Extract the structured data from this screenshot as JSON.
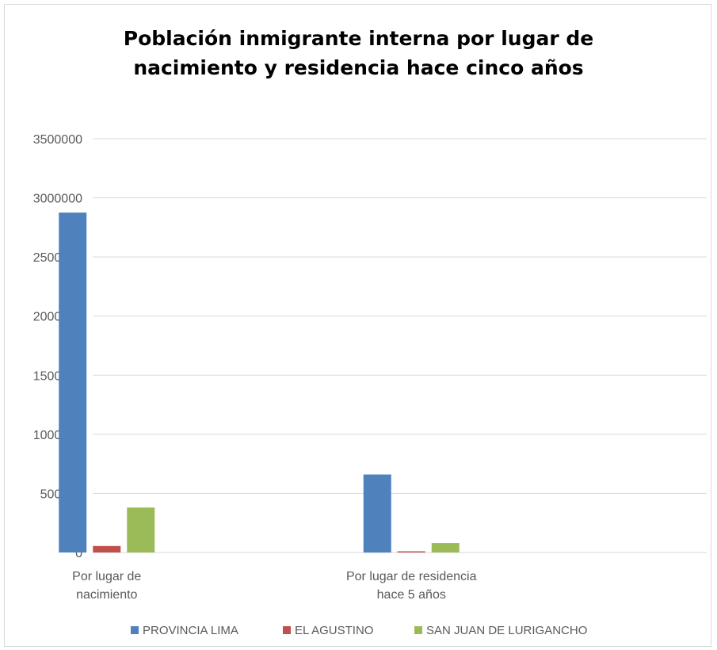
{
  "chart_data": {
    "type": "bar",
    "title": "Población inmigrante interna por lugar de\nnacimiento y residencia hace cinco años",
    "categories": [
      [
        "Por lugar de",
        "nacimiento"
      ],
      [
        "Por lugar de residencia",
        "hace 5 años"
      ]
    ],
    "series": [
      {
        "name": "PROVINCIA LIMA",
        "color": "#4f81bd",
        "values": [
          2875000,
          660000
        ]
      },
      {
        "name": "EL AGUSTINO",
        "color": "#c0504d",
        "values": [
          55000,
          10000
        ]
      },
      {
        "name": "SAN JUAN DE LURIGANCHO",
        "color": "#9bbb59",
        "values": [
          380000,
          80000
        ]
      }
    ],
    "ylim": [
      0,
      3500000
    ],
    "yticks": [
      "0",
      "500000",
      "1000000",
      "1500000",
      "2000000",
      "2500000",
      "3000000",
      "3500000"
    ],
    "grid": true,
    "legend_position": "bottom"
  }
}
